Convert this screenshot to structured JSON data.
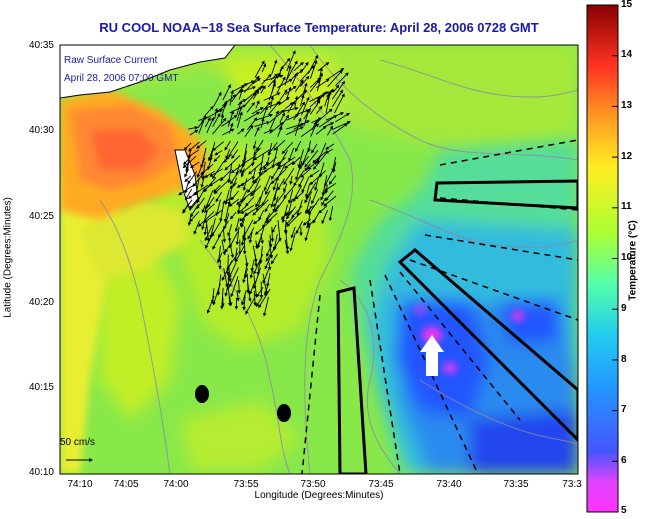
{
  "title": "RU COOL  NOAA−18  Sea Surface Temperature:  April 28, 2006 0728 GMT",
  "current_overlay": {
    "label_line1": "Raw Surface Current",
    "label_line2": "April 28, 2006 07:00 GMT",
    "scale_label": "50 cm/s"
  },
  "axes": {
    "xlabel": "Longitude (Degrees:Minutes)",
    "ylabel": "Latitude (Degrees:Minutes)",
    "xticks": [
      "74:10",
      "74:05",
      "74:00",
      "73:55",
      "73:50",
      "73:45",
      "73:40",
      "73:35",
      "73:3"
    ],
    "yticks": [
      "40:35",
      "40:30",
      "40:25",
      "40:20",
      "40:15",
      "40:10"
    ]
  },
  "colorbar": {
    "label": "Temperature (°C)",
    "ticks": [
      "15",
      "14",
      "13",
      "12",
      "11",
      "10",
      "9",
      "8",
      "7",
      "6",
      "5"
    ],
    "range": [
      5,
      15
    ],
    "colors": [
      "#ff33ff",
      "#3333ff",
      "#33aaff",
      "#55ffaa",
      "#aaff33",
      "#ffee22",
      "#ff9922",
      "#ff3322",
      "#cc1111",
      "#880000"
    ]
  }
}
